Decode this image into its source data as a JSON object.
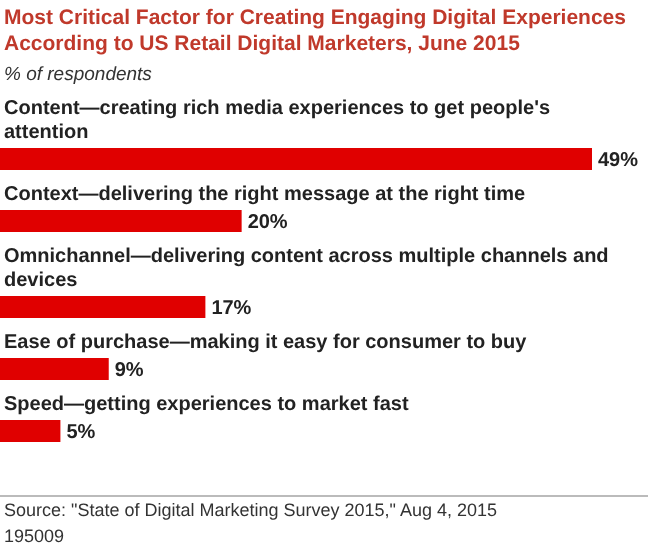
{
  "chart_data": {
    "type": "bar",
    "orientation": "horizontal",
    "title": "Most Critical Factor for Creating Engaging Digital Experiences According to US Retail Digital Marketers, June 2015",
    "subtitle": "% of respondents",
    "categories": [
      "Content—creating rich media experiences to get people's attention",
      "Context—delivering the right message at the right time",
      "Omnichannel—delivering content across multiple channels and devices",
      "Ease of purchase—making it easy for consumer to buy",
      "Speed—getting experiences to market fast"
    ],
    "values": [
      49,
      20,
      17,
      9,
      5
    ],
    "value_labels": [
      "49%",
      "20%",
      "17%",
      "9%",
      "5%"
    ],
    "color": "#e00000",
    "annotations": [
      "Source: \"State of Digital Marketing Survey 2015,\" Aug 4, 2015",
      "195009"
    ]
  }
}
